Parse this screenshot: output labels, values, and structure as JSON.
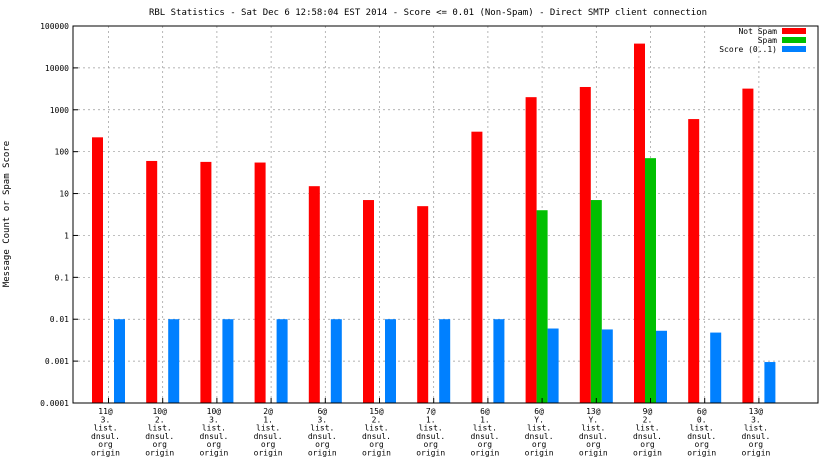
{
  "chart_data": {
    "type": "bar",
    "title": "RBL Statistics - Sat Dec  6 12:58:04 EST 2014 - Score <= 0.01 (Non-Spam) - Direct SMTP client connection",
    "ylabel": "Message Count or Spam Score",
    "xlabel": "",
    "y_scale": "log",
    "ylim": [
      0.0001,
      100000
    ],
    "y_ticks": [
      "100000",
      "10000",
      "1000",
      "100",
      "10",
      "1",
      "0.1",
      "0.01",
      "0.001",
      "0.0001"
    ],
    "grid": true,
    "legend_position": "top-right",
    "categories": [
      [
        "11@",
        "3.",
        "list.",
        "dnsul.",
        "org",
        "origin"
      ],
      [
        "10@",
        "2.",
        "list.",
        "dnsul.",
        "org",
        "origin"
      ],
      [
        "10@",
        "3.",
        "list.",
        "dnsul.",
        "org",
        "origin"
      ],
      [
        "2@",
        "1.",
        "list.",
        "dnsul.",
        "org",
        "origin"
      ],
      [
        "6@",
        "3.",
        "list.",
        "dnsul.",
        "org",
        "origin"
      ],
      [
        "15@",
        "2.",
        "list.",
        "dnsul.",
        "org",
        "origin"
      ],
      [
        "7@",
        "1.",
        "list.",
        "dnsul.",
        "org",
        "origin"
      ],
      [
        "6@",
        "1.",
        "list.",
        "dnsul.",
        "org",
        "origin"
      ],
      [
        "6@",
        "Y.",
        "list.",
        "dnsul.",
        "org",
        "origin"
      ],
      [
        "13@",
        "Y.",
        "list.",
        "dnsul.",
        "org",
        "origin"
      ],
      [
        "9@",
        "2.",
        "list.",
        "dnsul.",
        "org",
        "origin"
      ],
      [
        "6@",
        "0.",
        "list.",
        "dnsul.",
        "org",
        "origin"
      ],
      [
        "13@",
        "3.",
        "list.",
        "dnsul.",
        "org",
        "origin"
      ]
    ],
    "series": [
      {
        "name": "Not Spam",
        "color": "#ff0000",
        "values": [
          220,
          60,
          57,
          55,
          15,
          7,
          5,
          300,
          2000,
          3500,
          38000,
          600,
          3200
        ]
      },
      {
        "name": "Spam",
        "color": "#00c000",
        "values": [
          null,
          null,
          null,
          null,
          null,
          null,
          null,
          null,
          4,
          7,
          70,
          null,
          null
        ]
      },
      {
        "name": "Score (0..1)",
        "color": "#0080ff",
        "values": [
          0.01,
          0.01,
          0.01,
          0.01,
          0.01,
          0.01,
          0.01,
          0.01,
          0.006,
          0.0057,
          0.0053,
          0.0048,
          0.00095
        ]
      }
    ]
  }
}
